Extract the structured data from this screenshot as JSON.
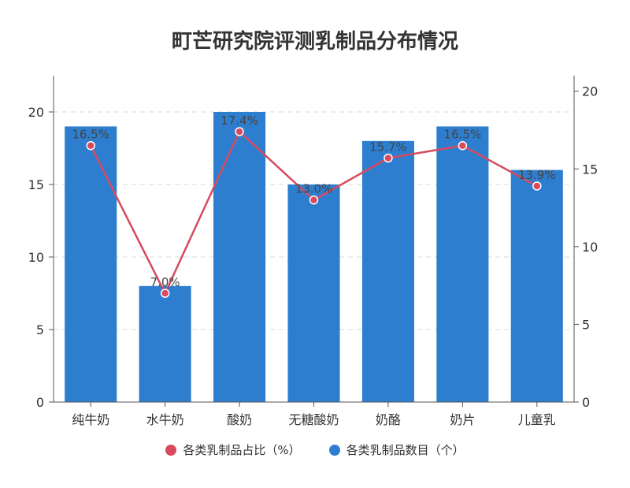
{
  "colors": {
    "bar": "#2e7ed0",
    "line": "#d84a5e",
    "axis": "#555555",
    "grid": "#d9d9d9"
  },
  "chart_data": {
    "type": "bar",
    "title": "町芒研究院评测乳制品分布情况",
    "categories": [
      "纯牛奶",
      "水牛奶",
      "酸奶",
      "无糖酸奶",
      "奶酪",
      "奶片",
      "儿童乳"
    ],
    "series": [
      {
        "name": "各类乳制品数目（个）",
        "type": "bar",
        "axis": "left",
        "values": [
          19,
          8,
          20,
          15,
          18,
          19,
          16
        ]
      },
      {
        "name": "各类乳制品占比（%）",
        "type": "line",
        "axis": "right",
        "values": [
          16.5,
          7.0,
          17.4,
          13.0,
          15.7,
          16.5,
          13.9
        ],
        "labels": [
          "16.5%",
          "7.0%",
          "17.4%",
          "13.0%",
          "15.7%",
          "16.5%",
          "13.9%"
        ]
      }
    ],
    "ylim": [
      0,
      22.5
    ],
    "y_ticks": [
      "0",
      "5",
      "10",
      "15",
      "20"
    ],
    "y2lim": [
      0,
      21
    ],
    "y2_ticks": [
      "0",
      "5",
      "10",
      "15",
      "20"
    ],
    "grid": true,
    "legend": "bottom-center",
    "legend_order": [
      "各类乳制品占比（%）",
      "各类乳制品数目（个）"
    ]
  }
}
